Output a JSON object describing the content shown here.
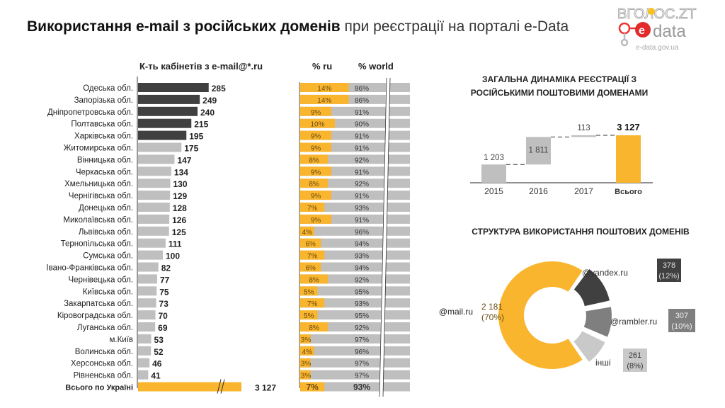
{
  "title": {
    "bold": "Використання e-mail з російських доменів",
    "rest": " при реєстрації на порталі e-Data"
  },
  "logo": {
    "brand_top": "ВГОЛОС.ZT",
    "brand_e": "е",
    "brand_data": "data",
    "url": "e-data.gov.ua"
  },
  "colors": {
    "orange": "#F9B52E",
    "dark": "#404040",
    "light_gray": "#BFBFBF",
    "mid_gray": "#7F7F7F"
  },
  "chart_data": [
    {
      "type": "bar",
      "orientation": "horizontal",
      "title": "К-ть кабінетів з e-mail@*.ru",
      "categories": [
        "Одеська обл.",
        "Запорізька обл.",
        "Дніпропетровська обл.",
        "Полтавська обл.",
        "Харківська обл.",
        "Житомирська обл.",
        "Вінницька обл.",
        "Черкаська обл.",
        "Хмельницька обл.",
        "Чернігівська обл.",
        "Донецька обл.",
        "Миколаївська обл.",
        "Львівська обл.",
        "Тернопільська обл.",
        "Сумська обл.",
        "Івано-Франківська обл.",
        "Чернівецька обл.",
        "Київська обл.",
        "Закарпатська обл.",
        "Кіровоградська обл.",
        "Луганська обл.",
        "м.Київ",
        "Волинська обл.",
        "Херсонська обл.",
        "Рівненська обл.",
        "Всього  по Україні"
      ],
      "values": [
        285,
        249,
        240,
        215,
        195,
        175,
        147,
        134,
        130,
        129,
        128,
        126,
        125,
        111,
        100,
        82,
        77,
        75,
        73,
        70,
        69,
        53,
        52,
        46,
        41,
        3127
      ],
      "value_labels": [
        "285",
        "249",
        "240",
        "215",
        "195",
        "175",
        "147",
        "134",
        "130",
        "129",
        "128",
        "126",
        "125",
        "111",
        "100",
        "82",
        "77",
        "75",
        "73",
        "70",
        "69",
        "53",
        "52",
        "46",
        "41",
        "3 127"
      ],
      "highlight_top_n": 5,
      "total_axis_break": true
    },
    {
      "type": "bar",
      "orientation": "horizontal-stacked-100",
      "title": "% ru / % world",
      "series": [
        {
          "name": "% ru",
          "values": [
            14,
            14,
            9,
            10,
            9,
            9,
            8,
            9,
            8,
            9,
            7,
            9,
            4,
            6,
            7,
            6,
            8,
            5,
            7,
            5,
            8,
            3,
            4,
            3,
            3,
            7
          ]
        },
        {
          "name": "% world",
          "values": [
            86,
            86,
            91,
            90,
            91,
            91,
            92,
            91,
            92,
            91,
            93,
            91,
            96,
            94,
            93,
            94,
            92,
            95,
            93,
            95,
            92,
            97,
            96,
            97,
            97,
            93
          ]
        }
      ],
      "axis_break": true
    },
    {
      "type": "bar",
      "subtype": "waterfall",
      "title": "ЗАГАЛЬНА ДИНАМІКА РЕЄСТРАЦІЇ З РОСІЙСЬКИМИ ПОШТОВИМИ ДОМЕНАМИ",
      "categories": [
        "2015",
        "2016",
        "2017",
        "Всього"
      ],
      "values": [
        1203,
        1811,
        113,
        3127
      ],
      "value_labels": [
        "1 203",
        "1 811",
        "113",
        "3 127"
      ],
      "ylim": [
        0,
        3127
      ]
    },
    {
      "type": "pie",
      "subtype": "donut",
      "title": "СТРУКТУРА ВИКОРИСТАННЯ ПОШТОВИХ ДОМЕНІВ",
      "slices": [
        {
          "label": "@mail.ru",
          "value": 2181,
          "value_label": "2 181",
          "percent": "(70%)"
        },
        {
          "label": "@yandex.ru",
          "value": 378,
          "value_label": "378",
          "percent": "(12%)"
        },
        {
          "label": "@rambler.ru",
          "value": 307,
          "value_label": "307",
          "percent": "(10%)"
        },
        {
          "label": "інші",
          "value": 261,
          "value_label": "261",
          "percent": "(8%)"
        }
      ]
    }
  ],
  "headers": {
    "count": "К-ть кабінетів з e-mail@*.ru",
    "ru": "% ru",
    "world": "% world"
  }
}
